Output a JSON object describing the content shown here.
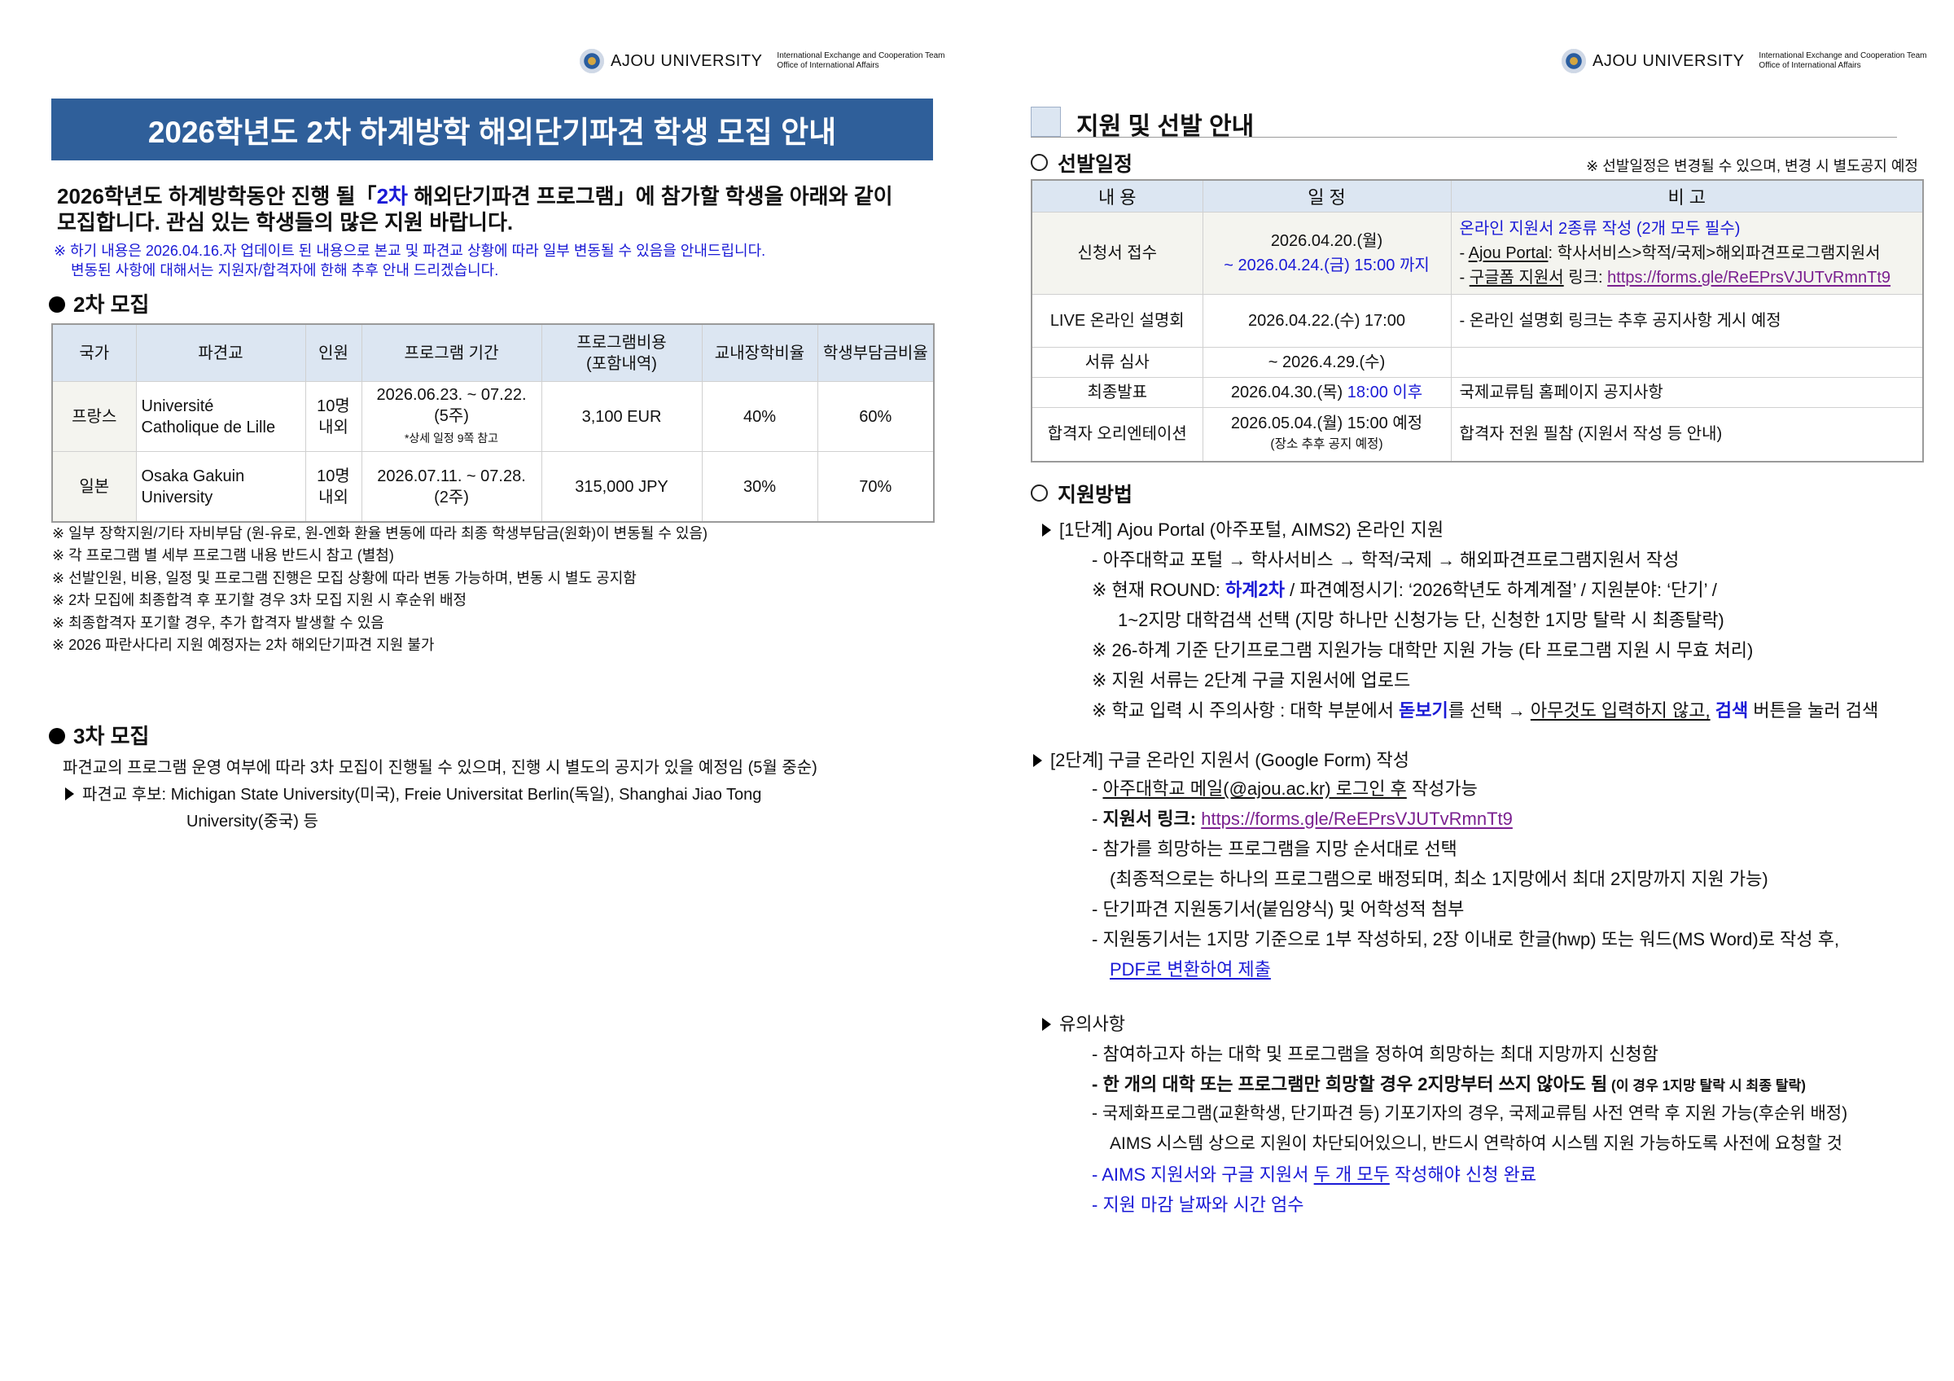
{
  "header": {
    "university": "AJOU UNIVERSITY",
    "team": "International Exchange and Cooperation Team",
    "office": "Office of International Affairs"
  },
  "left": {
    "title": "2026학년도 2차 하계방학 해외단기파견 학생 모집 안내",
    "intro": [
      [
        {
          "t": "2026학년도 하계방학동안 진행 될「"
        },
        {
          "t": "2차",
          "c": "blue"
        },
        {
          "t": " 해외단기파견 프로그램」에 참가할 학생을 아래와 같이"
        }
      ],
      [
        {
          "t": "모집합니다. 관심 있는 학생들의 많은 지원 바랍니다."
        }
      ]
    ],
    "notice": [
      "※ 하기 내용은 2026.04.16.자 업데이트 된 내용으로 본교 및 파견교 상황에 따라 일부 변동될 수 있음을 안내드립니다.",
      "변동된 사항에 대해서는 지원자/합격자에 한해 추후 안내 드리겠습니다."
    ],
    "round2_heading": "2차 모집",
    "table": {
      "headers": [
        "국가",
        "파견교",
        "인원",
        "프로그램 기간",
        "프로그램비용\n(포함내역)",
        "교내장학비율",
        "학생부담금비율"
      ],
      "rows": [
        {
          "country": "프랑스",
          "school": [
            "Université",
            "Catholique de Lille"
          ],
          "capacity": [
            "10명",
            "내외"
          ],
          "period": [
            "2026.06.23. ~ 07.22.",
            "(5주)"
          ],
          "period_note": "*상세 일정 9쪽 참고",
          "cost": "3,100 EUR",
          "scholarship": "40%",
          "student_share": "60%"
        },
        {
          "country": "일본",
          "school": [
            "Osaka Gakuin",
            "University"
          ],
          "capacity": [
            "10명",
            "내외"
          ],
          "period": [
            "2026.07.11. ~ 07.28.",
            "(2주)"
          ],
          "period_note": "",
          "cost": "315,000 JPY",
          "scholarship": "30%",
          "student_share": "70%"
        }
      ]
    },
    "notes": [
      "※ 일부 장학지원/기타 자비부담 (원-유로, 원-엔화 환율 변동에 따라 최종 학생부담금(원화)이 변동될 수 있음)",
      "※ 각 프로그램 별 세부 프로그램 내용 반드시 참고 (별첨)",
      "※ 선발인원, 비용, 일정 및 프로그램 진행은 모집 상황에 따라 변동 가능하며, 변동 시 별도 공지함",
      "※ 2차 모집에 최종합격 후 포기할 경우 3차 모집 지원 시 후순위 배정",
      "※ 최종합격자 포기할 경우, 추가 합격자 발생할 수 있음",
      "※ 2026 파란사다리 지원 예정자는 2차 해외단기파견 지원 불가"
    ],
    "round3_heading": "3차 모집",
    "round3_text": "파견교의 프로그램 운영 여부에 따라 3차 모집이 진행될 수 있으며, 진행 시 별도의 공지가 있을 예정임 (5월 중순)",
    "round3_candidates_label": "파견교 후보:",
    "round3_candidates": "Michigan State University(미국), Freie Universitat Berlin(독일), Shanghai Jiao Tong",
    "round3_candidates_cont": "University(중국) 등"
  },
  "right": {
    "title": "지원 및 선발 안내",
    "schedule_heading": "선발일정",
    "schedule_note": "※ 선발일정은 변경될 수 있으며, 변경 시 별도공지 예정",
    "schedule_headers": [
      "내 용",
      "일 정",
      "비 고"
    ],
    "schedule": [
      {
        "item": "신청서 접수",
        "date": [
          [
            {
              "t": "2026.04.20.(월)"
            }
          ],
          [
            {
              "t": "~ 2026.04.24.(금) 15:00 까지",
              "c": "blue"
            }
          ]
        ],
        "remark": [
          [
            {
              "t": "온라인 지원서 2종류 작성 (2개 모두 필수)",
              "c": "blue"
            }
          ],
          [
            {
              "t": "- "
            },
            {
              "t": "Ajou Portal",
              "u": true
            },
            {
              "t": ": 학사서비스>학적/국제>해외파견프로그램지원서"
            }
          ],
          [
            {
              "t": "- "
            },
            {
              "t": "구글폼 지원서",
              "u": true
            },
            {
              "t": " 링크: "
            },
            {
              "t": "https://forms.gle/ReEPrsVJUTvRmnTt9",
              "c": "purple",
              "u": true
            }
          ]
        ]
      },
      {
        "item": "LIVE 온라인 설명회",
        "date": [
          [
            {
              "t": "2026.04.22.(수) 17:00"
            }
          ]
        ],
        "remark": [
          [
            {
              "t": "- 온라인 설명회 링크는 추후 공지사항 게시 예정"
            }
          ]
        ]
      },
      {
        "item": "서류 심사",
        "date": [
          [
            {
              "t": "~ 2026.4.29.(수)"
            }
          ]
        ],
        "remark": []
      },
      {
        "item": "최종발표",
        "date": [
          [
            {
              "t": "2026.04.30.(목) "
            },
            {
              "t": "18:00 이후",
              "c": "blue"
            }
          ]
        ],
        "remark": [
          [
            {
              "t": "국제교류팀 홈페이지 공지사항"
            }
          ]
        ]
      },
      {
        "item": "합격자 오리엔테이션",
        "date": [
          [
            {
              "t": "2026.05.04.(월) 15:00 예정"
            }
          ],
          [
            {
              "t": "(장소 추후 공지 예정)",
              "s": "sm"
            }
          ]
        ],
        "remark": [
          [
            {
              "t": "합격자 전원 필참 (지원서 작성 등 안내)"
            }
          ]
        ]
      }
    ],
    "method_heading": "지원방법",
    "lines": [
      [
        {
          "t": "[1단계] Ajou Portal (아주포털, AIMS2) 온라인 지원"
        }
      ],
      [
        {
          "t": "- 아주대학교 포털 → 학사서비스 → 학적/국제 →  해외파견프로그램지원서 작성"
        }
      ],
      [
        {
          "t": "※ 현재 ROUND: "
        },
        {
          "t": "하계2차",
          "c": "blue",
          "b": true
        },
        {
          "t": " / 파견예정시기: ‘2026학년도 하계계절’ / 지원분야: ‘단기’ /"
        }
      ],
      [
        {
          "t": "1~2지망 대학검색 선택 (지망 하나만 신청가능 단, 신청한 1지망 탈락 시 최종탈락)"
        }
      ],
      [
        {
          "t": "※ 26-하계 기준 단기프로그램 지원가능 대학만 지원 가능 (타 프로그램 지원 시 무효 처리)"
        }
      ],
      [
        {
          "t": "※ 지원 서류는 2단계 구글 지원서에 업로드"
        }
      ],
      [
        {
          "t": "※ 학교 입력 시 주의사항 : 대학 부분에서 "
        },
        {
          "t": "돋보기",
          "c": "blue",
          "b": true
        },
        {
          "t": "를 선택 → "
        },
        {
          "t": "아무것도 입력하지 않고,",
          "u": true
        },
        {
          "t": " "
        },
        {
          "t": "검색",
          "c": "blue",
          "b": true
        },
        {
          "t": " 버튼을 눌러 검색"
        }
      ],
      [
        {
          "t": "[2단계] 구글 온라인 지원서 (Google Form) 작성"
        }
      ],
      [
        {
          "t": "- "
        },
        {
          "t": "아주대학교 메일(@ajou.ac.kr) 로그인 후",
          "u": true
        },
        {
          "t": " 작성가능"
        }
      ],
      [
        {
          "t": "- "
        },
        {
          "t": "지원서 링크: ",
          "b": true
        },
        {
          "t": "https://forms.gle/ReEPrsVJUTvRmnTt9",
          "c": "purple",
          "u": true
        }
      ],
      [
        {
          "t": "- 참가를 희망하는 프로그램을 지망 순서대로 선택"
        }
      ],
      [
        {
          "t": "(최종적으로는 하나의 프로그램으로 배정되며, 최소 1지망에서 최대 2지망까지 지원 가능)"
        }
      ],
      [
        {
          "t": "- 단기파견 지원동기서(붙임양식) 및 어학성적 첨부"
        }
      ],
      [
        {
          "t": "- 지원동기서는 1지망 기준으로 1부 작성하되, 2장 이내로 한글(hwp) 또는 워드(MS Word)로 작성 후,"
        }
      ],
      [
        {
          "t": "PDF로 변환하여 제출",
          "c": "blue",
          "u": true
        }
      ],
      [
        {
          "t": "유의사항"
        }
      ],
      [
        {
          "t": "- 참여하고자 하는 대학 및 프로그램을 정하여 희망하는 최대 지망까지 신청함"
        }
      ],
      [
        {
          "t": "- 한 개의 대학 또는 프로그램만 희망할 경우 2지망부터 쓰지 않아도 됨",
          "b": true
        },
        {
          "t": " (이 경우 1지망 탈락 시 최종 탈락)",
          "b": true,
          "s": "sm"
        }
      ],
      [
        {
          "t": "- 국제화프로그램(교환학생, 단기파견 등) 기포기자의 경우, 국제교류팀 사전 연락 후 지원 가능(후순위 배정)"
        }
      ],
      [
        {
          "t": "AIMS 시스템 상으로 지원이 차단되어있으니, 반드시 연락하여 시스템 지원 가능하도록 사전에 요청할 것"
        }
      ],
      [
        {
          "t": "- AIMS 지원서와 구글 지원서 ",
          "c": "blue"
        },
        {
          "t": "두 개 모두",
          "c": "blue",
          "u": true
        },
        {
          "t": " 작성해야 신청 완료",
          "c": "blue"
        }
      ],
      [
        {
          "t": "- 지원 마감 날짜와 시간 엄수",
          "c": "blue"
        }
      ]
    ]
  }
}
